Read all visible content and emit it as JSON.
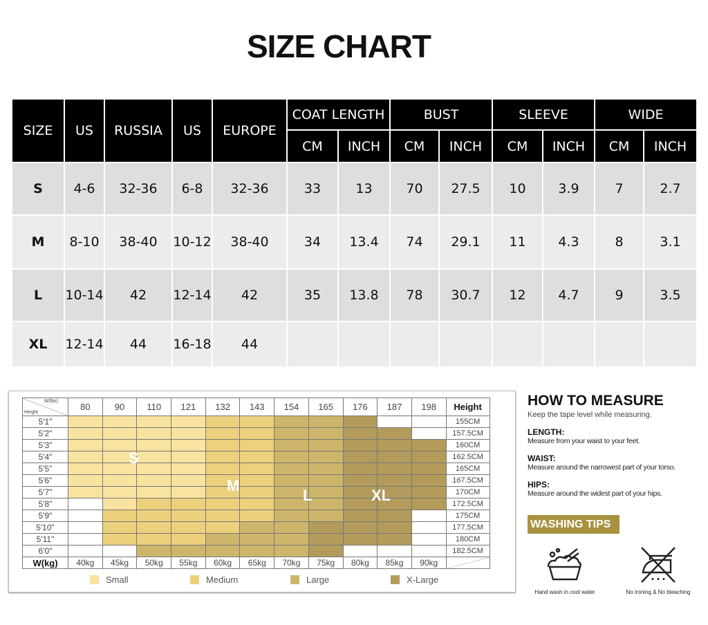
{
  "title": "SIZE CHART",
  "table": {
    "headers_top": [
      "SIZE",
      "US",
      "RUSSIA",
      "US",
      "EUROPE",
      "COAT LENGTH",
      "BUST",
      "SLEEVE",
      "WIDE"
    ],
    "headers_sub": [
      "CM",
      "INCH",
      "CM",
      "INCH",
      "CM",
      "INCH",
      "CM",
      "INCH"
    ],
    "rows": [
      [
        "S",
        "4-6",
        "32-36",
        "6-8",
        "32-36",
        "33",
        "13",
        "70",
        "27.5",
        "10",
        "3.9",
        "7",
        "2.7"
      ],
      [
        "M",
        "8-10",
        "38-40",
        "10-12",
        "38-40",
        "34",
        "13.4",
        "74",
        "29.1",
        "11",
        "4.3",
        "8",
        "3.1"
      ],
      [
        "L",
        "10-14",
        "42",
        "12-14",
        "42",
        "35",
        "13.8",
        "78",
        "30.7",
        "12",
        "4.7",
        "9",
        "3.5"
      ],
      [
        "XL",
        "12-14",
        "44",
        "16-18",
        "44",
        "",
        "",
        "",
        "",
        "",
        "",
        "",
        ""
      ]
    ]
  },
  "grid": {
    "corner_top": "W(lbs)",
    "corner_bottom": "Height",
    "lbs": [
      "80",
      "90",
      "110",
      "121",
      "132",
      "143",
      "154",
      "165",
      "176",
      "187",
      "198"
    ],
    "height_header": "Height",
    "heights_ft": [
      "5'1\"",
      "5'2\"",
      "5'3\"",
      "5'4\"",
      "5'5\"",
      "5'6\"",
      "5'7\"",
      "5'8\"",
      "5'9\"",
      "5'10\"",
      "5'11\"",
      "6'0\""
    ],
    "heights_cm": [
      "155CM",
      "157.5CM",
      "160CM",
      "162.5CM",
      "165CM",
      "167.5CM",
      "170CM",
      "172.5CM",
      "175CM",
      "177.5CM",
      "180CM",
      "182.5CM"
    ],
    "kg_label": "W(kg)",
    "kg": [
      "40kg",
      "45kg",
      "50kg",
      "55kg",
      "60kg",
      "65kg",
      "70kg",
      "75kg",
      "80kg",
      "85kg",
      "90kg"
    ],
    "cells": [
      "SSSSMMLLX--",
      "SSSSMMLLXX-",
      "SSSSMMLLXXX",
      "SSSSMMLLXXX",
      "SSSSMMLLXXX",
      "SSSSMMLLXXX",
      "SSSSMMLLXXX",
      "-SMMMMLLXXX",
      "-MMMMMLLXX-",
      "-MMMMLLXXX-",
      "-MMMLLLXXX-",
      "--LLLLLX---"
    ],
    "zone_labels": {
      "S": "S",
      "M": "M",
      "L": "L",
      "X": "XL"
    },
    "colors": {
      "S": "#f8e3a0",
      "M": "#ecd07c",
      "L": "#cdb66b",
      "X": "#b39c5b",
      "-": "#ffffff"
    },
    "legend": [
      {
        "key": "S",
        "label": "Small"
      },
      {
        "key": "M",
        "label": "Medium"
      },
      {
        "key": "L",
        "label": "Large"
      },
      {
        "key": "X",
        "label": "X-Large"
      }
    ]
  },
  "measure": {
    "title": "HOW TO MEASURE",
    "subtitle": "Keep the tape level while measuring.",
    "items": [
      {
        "label": "LENGTH:",
        "text": "Measure from your waist to your feet."
      },
      {
        "label": "WAIST:",
        "text": "Measure around the narrowest part of your torso."
      },
      {
        "label": "HIPS:",
        "text": "Measure around the widest part of your hips."
      }
    ]
  },
  "washing": {
    "title": "WASHING TIPS",
    "color": "#a89240",
    "icons": [
      {
        "icon": "hand-wash-icon",
        "label": "Hand wash in cool water"
      },
      {
        "icon": "no-ironing-icon",
        "label": "No ironing & No bleaching"
      }
    ]
  }
}
